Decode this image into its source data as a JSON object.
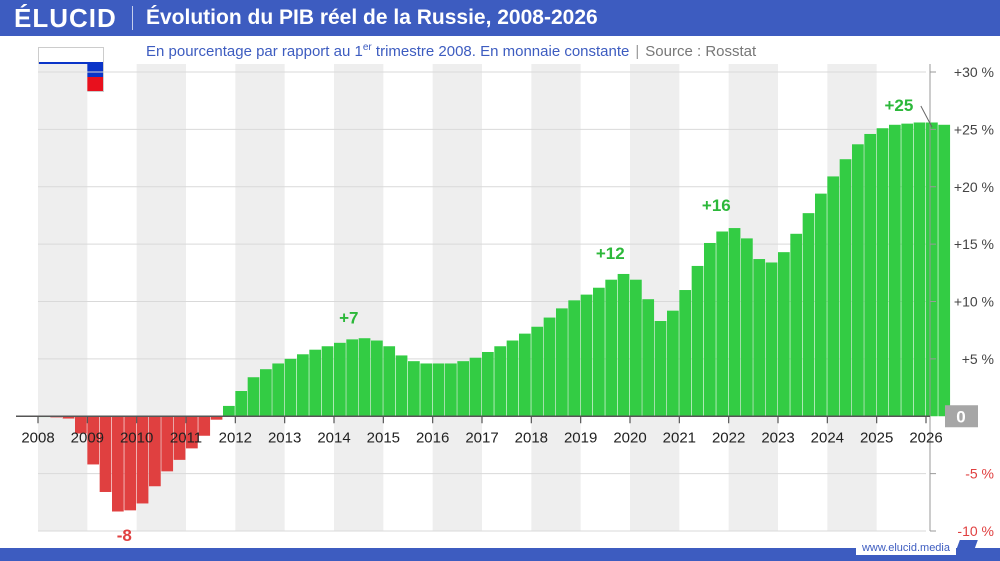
{
  "header": {
    "logo": "ÉLUCID",
    "title": "Évolution du PIB réel de la Russie, 2008-2026"
  },
  "subtitle": {
    "text_before": "En pourcentage par rapport au 1",
    "superscript": "er",
    "text_after": " trimestre 2008. En monnaie constante",
    "separator": "|",
    "source": "Source : Rosstat"
  },
  "flag": {
    "colors": [
      "#ffffff",
      "#0a34c8",
      "#e8101d"
    ]
  },
  "footer": {
    "url": "www.elucid.media"
  },
  "colors": {
    "positive": "#33cc44",
    "negative": "#e04040",
    "positive_label": "#2cb83a",
    "negative_label": "#e04040",
    "shade": "#eeeeee",
    "axis_zero_box": "#a6a6a6",
    "brand": "#3d5cc0"
  },
  "chart_data": {
    "type": "bar",
    "title": "Évolution du PIB réel de la Russie, 2008-2026",
    "xlabel": "",
    "ylabel": "",
    "xlim": [
      2008,
      2026
    ],
    "ylim": [
      -10,
      30
    ],
    "grid": true,
    "x_ticks": [
      "2008",
      "2009",
      "2010",
      "2011",
      "2012",
      "2013",
      "2014",
      "2015",
      "2016",
      "2017",
      "2018",
      "2019",
      "2020",
      "2021",
      "2022",
      "2023",
      "2024",
      "2025",
      "2026"
    ],
    "y_ticks": [
      {
        "value": 30,
        "label": "+30 %"
      },
      {
        "value": 25,
        "label": "+25 %"
      },
      {
        "value": 20,
        "label": "+20 %"
      },
      {
        "value": 15,
        "label": "+15 %"
      },
      {
        "value": 10,
        "label": "+10 %"
      },
      {
        "value": 5,
        "label": "+5 %"
      },
      {
        "value": 0,
        "label": "0"
      },
      {
        "value": -5,
        "label": "-5 %"
      },
      {
        "value": -10,
        "label": "-10 %"
      }
    ],
    "bar_width_years": 0.25,
    "start_year": 2008,
    "values": [
      0.0,
      -0.1,
      -0.2,
      -1.5,
      -4.2,
      -6.6,
      -8.3,
      -8.2,
      -7.6,
      -6.1,
      -4.8,
      -3.8,
      -2.8,
      -1.7,
      -0.3,
      0.9,
      2.2,
      3.4,
      4.1,
      4.6,
      5.0,
      5.4,
      5.8,
      6.1,
      6.4,
      6.7,
      6.8,
      6.6,
      6.1,
      5.3,
      4.8,
      4.6,
      4.6,
      4.6,
      4.8,
      5.1,
      5.6,
      6.1,
      6.6,
      7.2,
      7.8,
      8.6,
      9.4,
      10.1,
      10.6,
      11.2,
      11.9,
      12.4,
      11.9,
      10.2,
      8.3,
      9.2,
      11.0,
      13.1,
      15.1,
      16.1,
      16.4,
      15.5,
      13.7,
      13.4,
      14.3,
      15.9,
      17.7,
      19.4,
      20.9,
      22.4,
      23.7,
      24.6,
      25.1,
      25.4,
      25.5,
      25.6,
      25.6,
      25.4
    ],
    "annotations": [
      {
        "label": "-8",
        "x": 2009.75,
        "y": -10,
        "sign": "negative"
      },
      {
        "label": "+7",
        "x": 2014.3,
        "y": 8.1,
        "sign": "positive"
      },
      {
        "label": "+12",
        "x": 2019.6,
        "y": 13.7,
        "sign": "positive"
      },
      {
        "label": "+16",
        "x": 2021.75,
        "y": 17.9,
        "sign": "positive"
      },
      {
        "label": "+25",
        "x": 2025.45,
        "y": 26.6,
        "sign": "positive"
      }
    ]
  }
}
